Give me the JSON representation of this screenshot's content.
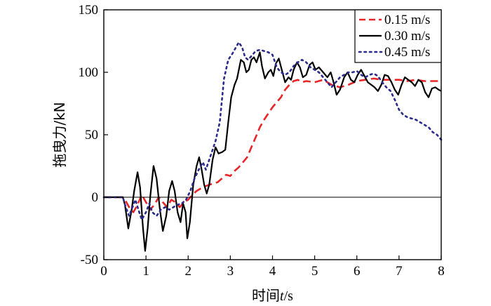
{
  "chart_data": {
    "type": "line",
    "xlabel": "时间t/s",
    "xlabel_parts": {
      "prefix": "时间",
      "italic": "t",
      "suffix": "/s"
    },
    "ylabel": "拖曳力/kN",
    "xlim": [
      0,
      8
    ],
    "ylim": [
      -50,
      150
    ],
    "x_ticks": [
      0,
      1,
      2,
      3,
      4,
      5,
      6,
      7,
      8
    ],
    "y_ticks": [
      -50,
      0,
      50,
      100,
      150
    ],
    "zero_line": true,
    "grid": false,
    "legend_position": "top-right",
    "series": [
      {
        "name": "0.15 m/s",
        "color": "#e8262a",
        "dash": "dashed",
        "points": [
          [
            0,
            0
          ],
          [
            0.3,
            0
          ],
          [
            0.45,
            0
          ],
          [
            0.5,
            -2
          ],
          [
            0.6,
            -8
          ],
          [
            0.7,
            -12
          ],
          [
            0.8,
            -6
          ],
          [
            0.9,
            2
          ],
          [
            1.0,
            -4
          ],
          [
            1.1,
            -10
          ],
          [
            1.2,
            -6
          ],
          [
            1.3,
            0
          ],
          [
            1.4,
            -4
          ],
          [
            1.5,
            -8
          ],
          [
            1.6,
            -2
          ],
          [
            1.7,
            -4
          ],
          [
            1.8,
            -8
          ],
          [
            1.9,
            -4
          ],
          [
            2.0,
            -2
          ],
          [
            2.1,
            2
          ],
          [
            2.2,
            5
          ],
          [
            2.35,
            8
          ],
          [
            2.5,
            10
          ],
          [
            2.7,
            12
          ],
          [
            2.8,
            15
          ],
          [
            2.9,
            18
          ],
          [
            3.0,
            17
          ],
          [
            3.1,
            21
          ],
          [
            3.2,
            24
          ],
          [
            3.3,
            28
          ],
          [
            3.4,
            32
          ],
          [
            3.5,
            40
          ],
          [
            3.6,
            48
          ],
          [
            3.7,
            56
          ],
          [
            3.8,
            62
          ],
          [
            3.9,
            67
          ],
          [
            4.0,
            72
          ],
          [
            4.1,
            76
          ],
          [
            4.2,
            80
          ],
          [
            4.3,
            86
          ],
          [
            4.4,
            90
          ],
          [
            4.5,
            93
          ],
          [
            4.6,
            94
          ],
          [
            4.7,
            92
          ],
          [
            4.8,
            93
          ],
          [
            5.0,
            92
          ],
          [
            5.2,
            94
          ],
          [
            5.4,
            90
          ],
          [
            5.6,
            88
          ],
          [
            5.8,
            90
          ],
          [
            6.0,
            93
          ],
          [
            6.2,
            94
          ],
          [
            6.4,
            95
          ],
          [
            6.6,
            94
          ],
          [
            6.8,
            94
          ],
          [
            7.0,
            94
          ],
          [
            7.2,
            93
          ],
          [
            7.4,
            94
          ],
          [
            7.6,
            93
          ],
          [
            7.8,
            93
          ],
          [
            8.0,
            93
          ]
        ]
      },
      {
        "name": "0.30 m/s",
        "color": "#000000",
        "dash": "solid",
        "points": [
          [
            0,
            0
          ],
          [
            0.3,
            0
          ],
          [
            0.45,
            0
          ],
          [
            0.5,
            -6
          ],
          [
            0.58,
            -25
          ],
          [
            0.66,
            -10
          ],
          [
            0.72,
            5
          ],
          [
            0.8,
            20
          ],
          [
            0.86,
            8
          ],
          [
            0.93,
            -25
          ],
          [
            0.98,
            -43
          ],
          [
            1.04,
            -25
          ],
          [
            1.1,
            0
          ],
          [
            1.18,
            25
          ],
          [
            1.25,
            15
          ],
          [
            1.33,
            -10
          ],
          [
            1.4,
            -27
          ],
          [
            1.48,
            -15
          ],
          [
            1.55,
            5
          ],
          [
            1.62,
            13
          ],
          [
            1.68,
            5
          ],
          [
            1.75,
            -12
          ],
          [
            1.82,
            -20
          ],
          [
            1.88,
            -5
          ],
          [
            1.94,
            -12
          ],
          [
            1.98,
            -33
          ],
          [
            2.04,
            -20
          ],
          [
            2.12,
            10
          ],
          [
            2.2,
            25
          ],
          [
            2.26,
            32
          ],
          [
            2.32,
            22
          ],
          [
            2.38,
            10
          ],
          [
            2.44,
            3
          ],
          [
            2.5,
            10
          ],
          [
            2.58,
            30
          ],
          [
            2.65,
            40
          ],
          [
            2.72,
            35
          ],
          [
            2.8,
            36
          ],
          [
            2.88,
            38
          ],
          [
            2.95,
            60
          ],
          [
            3.02,
            80
          ],
          [
            3.1,
            90
          ],
          [
            3.16,
            95
          ],
          [
            3.25,
            110
          ],
          [
            3.32,
            108
          ],
          [
            3.38,
            100
          ],
          [
            3.44,
            102
          ],
          [
            3.5,
            110
          ],
          [
            3.56,
            112
          ],
          [
            3.62,
            108
          ],
          [
            3.7,
            116
          ],
          [
            3.75,
            105
          ],
          [
            3.82,
            95
          ],
          [
            3.9,
            100
          ],
          [
            3.96,
            102
          ],
          [
            4.02,
            97
          ],
          [
            4.08,
            107
          ],
          [
            4.15,
            111
          ],
          [
            4.22,
            102
          ],
          [
            4.3,
            92
          ],
          [
            4.38,
            96
          ],
          [
            4.44,
            94
          ],
          [
            4.5,
            102
          ],
          [
            4.58,
            108
          ],
          [
            4.65,
            104
          ],
          [
            4.72,
            96
          ],
          [
            4.8,
            98
          ],
          [
            4.88,
            106
          ],
          [
            4.95,
            108
          ],
          [
            5.02,
            102
          ],
          [
            5.1,
            104
          ],
          [
            5.2,
            100
          ],
          [
            5.3,
            96
          ],
          [
            5.38,
            100
          ],
          [
            5.44,
            93
          ],
          [
            5.52,
            82
          ],
          [
            5.6,
            86
          ],
          [
            5.7,
            96
          ],
          [
            5.78,
            100
          ],
          [
            5.86,
            94
          ],
          [
            5.94,
            92
          ],
          [
            6.02,
            98
          ],
          [
            6.1,
            102
          ],
          [
            6.18,
            97
          ],
          [
            6.26,
            92
          ],
          [
            6.34,
            90
          ],
          [
            6.42,
            88
          ],
          [
            6.5,
            85
          ],
          [
            6.58,
            90
          ],
          [
            6.66,
            98
          ],
          [
            6.74,
            97
          ],
          [
            6.82,
            92
          ],
          [
            6.9,
            86
          ],
          [
            6.98,
            82
          ],
          [
            7.06,
            90
          ],
          [
            7.14,
            96
          ],
          [
            7.22,
            94
          ],
          [
            7.3,
            92
          ],
          [
            7.38,
            89
          ],
          [
            7.46,
            94
          ],
          [
            7.54,
            92
          ],
          [
            7.62,
            84
          ],
          [
            7.7,
            80
          ],
          [
            7.78,
            87
          ],
          [
            7.86,
            88
          ],
          [
            7.94,
            86
          ],
          [
            8.0,
            85
          ]
        ]
      },
      {
        "name": "0.45 m/s",
        "color": "#2b2b8c",
        "dash": "dotted",
        "points": [
          [
            0,
            0
          ],
          [
            0.3,
            0
          ],
          [
            0.45,
            0
          ],
          [
            0.52,
            -8
          ],
          [
            0.6,
            -15
          ],
          [
            0.68,
            -8
          ],
          [
            0.75,
            -2
          ],
          [
            0.82,
            -10
          ],
          [
            0.9,
            -18
          ],
          [
            1.0,
            -12
          ],
          [
            1.08,
            -5
          ],
          [
            1.15,
            -12
          ],
          [
            1.25,
            -15
          ],
          [
            1.35,
            -10
          ],
          [
            1.45,
            -8
          ],
          [
            1.55,
            -10
          ],
          [
            1.65,
            -8
          ],
          [
            1.75,
            -6
          ],
          [
            1.85,
            -5
          ],
          [
            1.95,
            -2
          ],
          [
            2.05,
            5
          ],
          [
            2.15,
            15
          ],
          [
            2.25,
            22
          ],
          [
            2.35,
            28
          ],
          [
            2.42,
            22
          ],
          [
            2.5,
            30
          ],
          [
            2.58,
            38
          ],
          [
            2.65,
            45
          ],
          [
            2.75,
            60
          ],
          [
            2.85,
            95
          ],
          [
            2.95,
            110
          ],
          [
            3.05,
            115
          ],
          [
            3.15,
            121
          ],
          [
            3.2,
            124
          ],
          [
            3.28,
            120
          ],
          [
            3.35,
            112
          ],
          [
            3.42,
            110
          ],
          [
            3.5,
            113
          ],
          [
            3.6,
            117
          ],
          [
            3.7,
            118
          ],
          [
            3.8,
            117
          ],
          [
            3.9,
            116
          ],
          [
            4.0,
            114
          ],
          [
            4.1,
            104
          ],
          [
            4.2,
            100
          ],
          [
            4.3,
            98
          ],
          [
            4.4,
            100
          ],
          [
            4.5,
            105
          ],
          [
            4.6,
            108
          ],
          [
            4.7,
            110
          ],
          [
            4.8,
            108
          ],
          [
            4.9,
            104
          ],
          [
            5.0,
            102
          ],
          [
            5.1,
            100
          ],
          [
            5.2,
            96
          ],
          [
            5.3,
            92
          ],
          [
            5.4,
            88
          ],
          [
            5.5,
            92
          ],
          [
            5.6,
            96
          ],
          [
            5.7,
            98
          ],
          [
            5.8,
            100
          ],
          [
            5.9,
            100
          ],
          [
            6.0,
            101
          ],
          [
            6.1,
            98
          ],
          [
            6.2,
            96
          ],
          [
            6.3,
            98
          ],
          [
            6.4,
            99
          ],
          [
            6.5,
            97
          ],
          [
            6.6,
            92
          ],
          [
            6.7,
            88
          ],
          [
            6.8,
            85
          ],
          [
            6.9,
            78
          ],
          [
            7.0,
            70
          ],
          [
            7.1,
            66
          ],
          [
            7.2,
            64
          ],
          [
            7.3,
            63
          ],
          [
            7.4,
            62
          ],
          [
            7.5,
            60
          ],
          [
            7.6,
            58
          ],
          [
            7.7,
            56
          ],
          [
            7.8,
            52
          ],
          [
            7.9,
            50
          ],
          [
            8.0,
            46
          ]
        ]
      }
    ]
  }
}
